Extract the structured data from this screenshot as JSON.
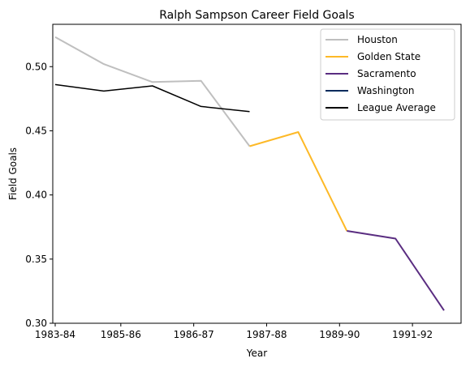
{
  "chart_data": {
    "type": "line",
    "title": "Ralph Sampson Career Field Goals",
    "xlabel": "Year",
    "ylabel": "Field Goals",
    "x_ticks": [
      "1983-84",
      "1985-86",
      "1986-87",
      "1987-88",
      "1989-90",
      "1991-92"
    ],
    "xlim": [
      -0.05,
      8.35
    ],
    "ylim": [
      0.3,
      0.533
    ],
    "y_ticks": [
      0.3,
      0.35,
      0.4,
      0.45,
      0.5
    ],
    "y_tick_labels": [
      "0.30",
      "0.35",
      "0.40",
      "0.45",
      "0.50"
    ],
    "grid": false,
    "legend_placement": "top-right",
    "series": [
      {
        "name": "Houston",
        "color": "#bfbfbf",
        "x": [
          0,
          1,
          2,
          3,
          4
        ],
        "values": [
          0.523,
          0.502,
          0.488,
          0.489,
          0.438
        ]
      },
      {
        "name": "Golden State",
        "color": "#fdb927",
        "x": [
          4,
          5,
          6
        ],
        "values": [
          0.438,
          0.449,
          0.372
        ]
      },
      {
        "name": "Sacramento",
        "color": "#5a2d81",
        "x": [
          6,
          7,
          8
        ],
        "values": [
          0.372,
          0.366,
          0.31
        ]
      },
      {
        "name": "Washington",
        "color": "#002b5c",
        "x": [],
        "values": []
      },
      {
        "name": "League Average",
        "color": "#000000",
        "x": [
          0,
          1,
          2,
          3,
          4
        ],
        "values": [
          0.486,
          0.481,
          0.485,
          0.469,
          0.465
        ]
      }
    ]
  }
}
